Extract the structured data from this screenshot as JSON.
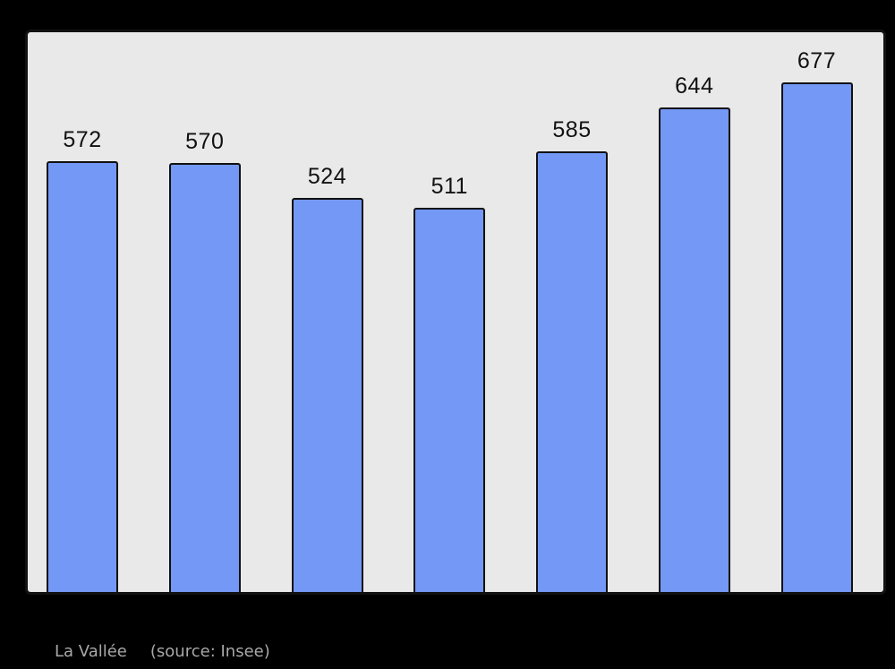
{
  "page": {
    "background": "#000000"
  },
  "caption": {
    "commune": "La Vallée",
    "source": "(source: Insee)",
    "color": "#a8a8a8"
  },
  "chart_data": {
    "type": "bar",
    "values": [
      572,
      570,
      524,
      511,
      585,
      644,
      677
    ],
    "bar_value_labels": [
      "572",
      "570",
      "524",
      "511",
      "585",
      "644",
      "677"
    ],
    "title": "",
    "xlabel": "",
    "ylabel": "",
    "x_tick_labels_visible": false,
    "y_axis_visible": false,
    "ylim": [
      0,
      742
    ],
    "grid": false,
    "legend": false,
    "bar_color": "#7398f5",
    "bar_border_color": "#111111",
    "value_label_color": "#111111",
    "plot_background": "#e9e9e9",
    "frame_border_color": "#121212"
  }
}
